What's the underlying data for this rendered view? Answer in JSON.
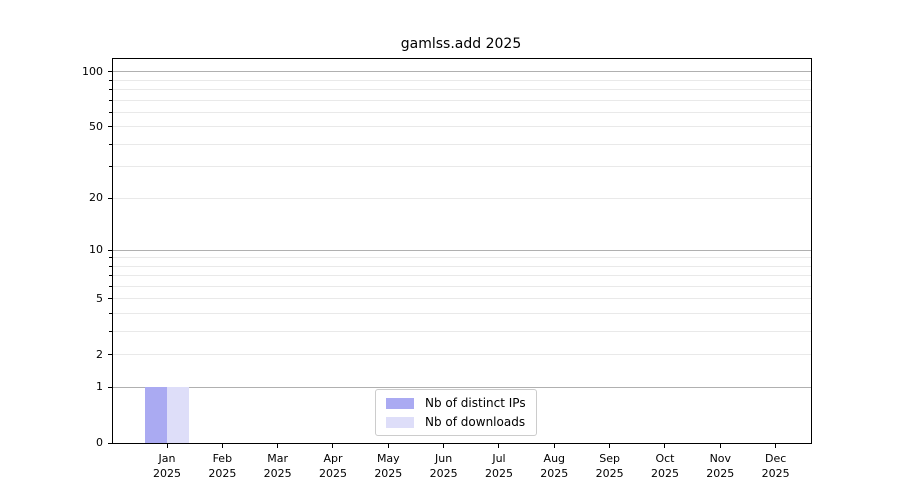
{
  "chart_data": {
    "type": "bar",
    "title": "gamlss.add 2025",
    "categories": [
      "Jan 2025",
      "Feb 2025",
      "Mar 2025",
      "Apr 2025",
      "May 2025",
      "Jun 2025",
      "Jul 2025",
      "Aug 2025",
      "Sep 2025",
      "Oct 2025",
      "Nov 2025",
      "Dec 2025"
    ],
    "series": [
      {
        "name": "Nb of distinct IPs",
        "color": "#aaaaf2",
        "values": [
          1,
          0,
          0,
          0,
          0,
          0,
          0,
          0,
          0,
          0,
          0,
          0
        ]
      },
      {
        "name": "Nb of downloads",
        "color": "#dedef9",
        "values": [
          1,
          0,
          0,
          0,
          0,
          0,
          0,
          0,
          0,
          0,
          0,
          0
        ]
      }
    ],
    "y_scale": "log1p",
    "ylim": [
      0,
      117.7
    ],
    "y_ticks": [
      0,
      1,
      2,
      5,
      10,
      20,
      50,
      100
    ],
    "y_minor_ticks": [
      3,
      4,
      6,
      7,
      8,
      9,
      30,
      40,
      60,
      70,
      80,
      90
    ],
    "y_gridlines_major": [
      1,
      10,
      100
    ],
    "y_gridlines_minor": [
      2,
      3,
      4,
      5,
      6,
      7,
      8,
      9,
      20,
      30,
      40,
      50,
      60,
      70,
      80,
      90
    ],
    "grid": true,
    "legend_position": "lower center",
    "colors": {
      "major_grid": "#b0b0b0",
      "minor_grid": "#e9e9e9",
      "axis": "#000000",
      "background": "#ffffff"
    }
  }
}
